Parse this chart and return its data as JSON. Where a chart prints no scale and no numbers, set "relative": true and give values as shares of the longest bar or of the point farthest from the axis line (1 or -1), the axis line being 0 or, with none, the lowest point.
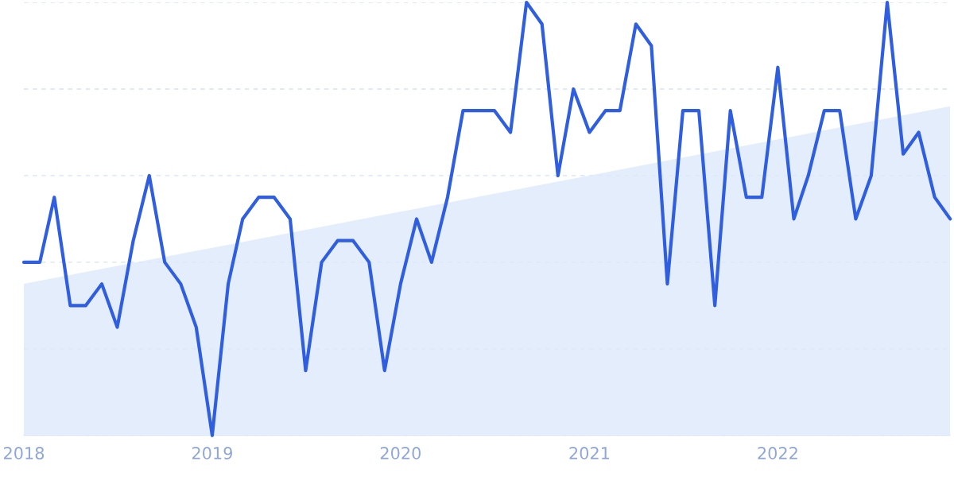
{
  "chart_data": {
    "type": "line",
    "relative": true,
    "grid": "y",
    "line_style": "solid",
    "marker": "none",
    "xlim": [
      "2018-01",
      "2022-12"
    ],
    "xticks": [
      {
        "value": "2018-01",
        "label": "2018"
      },
      {
        "value": "2019-01",
        "label": "2019"
      },
      {
        "value": "2020-01",
        "label": "2020"
      },
      {
        "value": "2021-01",
        "label": "2021"
      },
      {
        "value": "2022-01",
        "label": "2022"
      }
    ],
    "series": [
      {
        "type": "area",
        "color": "#dce9fb",
        "x": [
          "2018-01",
          "2022-12"
        ],
        "values": [
          0.35,
          0.76
        ]
      },
      {
        "color": "#2f5fe0",
        "x": [
          "2018-01",
          "2018-02",
          "2018-03",
          "2018-04",
          "2018-05",
          "2018-06",
          "2018-07",
          "2018-08",
          "2018-09",
          "2018-10",
          "2018-11",
          "2018-12",
          "2019-01",
          "2019-02",
          "2019-03",
          "2019-04",
          "2019-05",
          "2019-06",
          "2019-07",
          "2019-08",
          "2019-09",
          "2019-10",
          "2019-11",
          "2019-12",
          "2020-01",
          "2020-02",
          "2020-03",
          "2020-04",
          "2020-05",
          "2020-06",
          "2020-07",
          "2020-08",
          "2020-09",
          "2020-10",
          "2020-11",
          "2020-12",
          "2021-01",
          "2021-02",
          "2021-03",
          "2021-04",
          "2021-05",
          "2021-06",
          "2021-07",
          "2021-08",
          "2021-09",
          "2021-10",
          "2021-11",
          "2021-12",
          "2022-01",
          "2022-02",
          "2022-03",
          "2022-04",
          "2022-05",
          "2022-06",
          "2022-07",
          "2022-08",
          "2022-09",
          "2022-10",
          "2022-11",
          "2022-12"
        ],
        "values": [
          0.4,
          0.4,
          0.55,
          0.3,
          0.3,
          0.35,
          0.25,
          0.45,
          0.6,
          0.4,
          0.35,
          0.25,
          0.0,
          0.35,
          0.5,
          0.55,
          0.55,
          0.5,
          0.15,
          0.4,
          0.45,
          0.45,
          0.4,
          0.15,
          0.35,
          0.5,
          0.4,
          0.55,
          0.75,
          0.75,
          0.75,
          0.7,
          1.0,
          0.95,
          0.6,
          0.8,
          0.7,
          0.75,
          0.75,
          0.95,
          0.9,
          0.35,
          0.75,
          0.75,
          0.3,
          0.75,
          0.55,
          0.55,
          0.85,
          0.5,
          0.6,
          0.75,
          0.75,
          0.5,
          0.6,
          1.0,
          0.65,
          0.7,
          0.55,
          0.5
        ]
      }
    ]
  }
}
